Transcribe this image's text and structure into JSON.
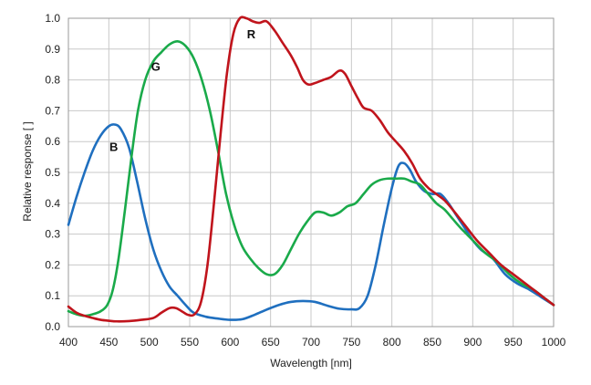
{
  "chart_data": {
    "type": "line",
    "xlabel": "Wavelength [nm]",
    "ylabel": "Relative response [ ]",
    "xlim": [
      400,
      1000
    ],
    "ylim": [
      0,
      1.0
    ],
    "xticks": [
      "400",
      "450",
      "500",
      "550",
      "600",
      "650",
      "700",
      "750",
      "800",
      "850",
      "900",
      "950",
      "1000"
    ],
    "yticks": [
      "0.0",
      "0.1",
      "0.2",
      "0.3",
      "0.4",
      "0.5",
      "0.6",
      "0.7",
      "0.8",
      "0.9",
      "1.0"
    ],
    "grid": true,
    "series": [
      {
        "name": "B",
        "color": "#1f6fbf",
        "label_at": [
          456,
          0.57
        ],
        "points": [
          [
            400,
            0.33
          ],
          [
            410,
            0.42
          ],
          [
            420,
            0.5
          ],
          [
            430,
            0.57
          ],
          [
            440,
            0.62
          ],
          [
            450,
            0.65
          ],
          [
            458,
            0.655
          ],
          [
            465,
            0.64
          ],
          [
            475,
            0.58
          ],
          [
            485,
            0.47
          ],
          [
            495,
            0.35
          ],
          [
            505,
            0.25
          ],
          [
            515,
            0.18
          ],
          [
            525,
            0.13
          ],
          [
            535,
            0.1
          ],
          [
            545,
            0.07
          ],
          [
            555,
            0.045
          ],
          [
            570,
            0.032
          ],
          [
            585,
            0.026
          ],
          [
            600,
            0.022
          ],
          [
            615,
            0.024
          ],
          [
            630,
            0.038
          ],
          [
            645,
            0.055
          ],
          [
            660,
            0.07
          ],
          [
            675,
            0.08
          ],
          [
            690,
            0.083
          ],
          [
            705,
            0.08
          ],
          [
            720,
            0.068
          ],
          [
            735,
            0.058
          ],
          [
            750,
            0.056
          ],
          [
            760,
            0.06
          ],
          [
            770,
            0.1
          ],
          [
            780,
            0.2
          ],
          [
            790,
            0.33
          ],
          [
            800,
            0.45
          ],
          [
            808,
            0.52
          ],
          [
            815,
            0.53
          ],
          [
            822,
            0.51
          ],
          [
            830,
            0.47
          ],
          [
            840,
            0.44
          ],
          [
            850,
            0.43
          ],
          [
            860,
            0.43
          ],
          [
            870,
            0.4
          ],
          [
            880,
            0.36
          ],
          [
            890,
            0.32
          ],
          [
            900,
            0.28
          ],
          [
            910,
            0.25
          ],
          [
            925,
            0.22
          ],
          [
            940,
            0.17
          ],
          [
            955,
            0.14
          ],
          [
            970,
            0.12
          ],
          [
            985,
            0.095
          ],
          [
            1000,
            0.07
          ]
        ]
      },
      {
        "name": "G",
        "color": "#1aaa4a",
        "label_at": [
          508,
          0.83
        ],
        "points": [
          [
            400,
            0.05
          ],
          [
            410,
            0.04
          ],
          [
            420,
            0.035
          ],
          [
            430,
            0.04
          ],
          [
            440,
            0.05
          ],
          [
            448,
            0.07
          ],
          [
            455,
            0.12
          ],
          [
            462,
            0.22
          ],
          [
            470,
            0.38
          ],
          [
            478,
            0.55
          ],
          [
            486,
            0.7
          ],
          [
            495,
            0.8
          ],
          [
            505,
            0.86
          ],
          [
            515,
            0.89
          ],
          [
            525,
            0.915
          ],
          [
            535,
            0.925
          ],
          [
            545,
            0.91
          ],
          [
            555,
            0.87
          ],
          [
            565,
            0.8
          ],
          [
            575,
            0.7
          ],
          [
            585,
            0.57
          ],
          [
            595,
            0.43
          ],
          [
            605,
            0.33
          ],
          [
            615,
            0.26
          ],
          [
            625,
            0.22
          ],
          [
            635,
            0.19
          ],
          [
            645,
            0.17
          ],
          [
            655,
            0.17
          ],
          [
            665,
            0.2
          ],
          [
            675,
            0.25
          ],
          [
            685,
            0.3
          ],
          [
            695,
            0.34
          ],
          [
            705,
            0.37
          ],
          [
            715,
            0.37
          ],
          [
            725,
            0.36
          ],
          [
            735,
            0.37
          ],
          [
            745,
            0.39
          ],
          [
            755,
            0.4
          ],
          [
            765,
            0.43
          ],
          [
            775,
            0.46
          ],
          [
            785,
            0.475
          ],
          [
            795,
            0.48
          ],
          [
            805,
            0.48
          ],
          [
            815,
            0.48
          ],
          [
            825,
            0.47
          ],
          [
            835,
            0.46
          ],
          [
            845,
            0.43
          ],
          [
            855,
            0.4
          ],
          [
            865,
            0.38
          ],
          [
            875,
            0.35
          ],
          [
            885,
            0.32
          ],
          [
            900,
            0.28
          ],
          [
            915,
            0.24
          ],
          [
            930,
            0.21
          ],
          [
            945,
            0.17
          ],
          [
            960,
            0.14
          ],
          [
            975,
            0.12
          ],
          [
            990,
            0.09
          ],
          [
            1000,
            0.07
          ]
        ]
      },
      {
        "name": "R",
        "color": "#c0141c",
        "label_at": [
          626,
          0.935
        ],
        "points": [
          [
            400,
            0.065
          ],
          [
            410,
            0.045
          ],
          [
            420,
            0.035
          ],
          [
            430,
            0.028
          ],
          [
            440,
            0.022
          ],
          [
            450,
            0.019
          ],
          [
            460,
            0.017
          ],
          [
            475,
            0.018
          ],
          [
            490,
            0.022
          ],
          [
            505,
            0.028
          ],
          [
            515,
            0.045
          ],
          [
            525,
            0.06
          ],
          [
            533,
            0.06
          ],
          [
            540,
            0.05
          ],
          [
            548,
            0.038
          ],
          [
            556,
            0.04
          ],
          [
            564,
            0.08
          ],
          [
            572,
            0.2
          ],
          [
            580,
            0.4
          ],
          [
            588,
            0.62
          ],
          [
            596,
            0.82
          ],
          [
            604,
            0.95
          ],
          [
            612,
            1.0
          ],
          [
            620,
            1.0
          ],
          [
            628,
            0.99
          ],
          [
            636,
            0.985
          ],
          [
            645,
            0.99
          ],
          [
            655,
            0.96
          ],
          [
            665,
            0.92
          ],
          [
            675,
            0.88
          ],
          [
            683,
            0.84
          ],
          [
            690,
            0.8
          ],
          [
            697,
            0.785
          ],
          [
            705,
            0.79
          ],
          [
            715,
            0.8
          ],
          [
            725,
            0.81
          ],
          [
            735,
            0.83
          ],
          [
            742,
            0.82
          ],
          [
            750,
            0.78
          ],
          [
            758,
            0.74
          ],
          [
            765,
            0.71
          ],
          [
            775,
            0.7
          ],
          [
            785,
            0.67
          ],
          [
            795,
            0.63
          ],
          [
            805,
            0.6
          ],
          [
            815,
            0.57
          ],
          [
            825,
            0.53
          ],
          [
            835,
            0.48
          ],
          [
            845,
            0.45
          ],
          [
            855,
            0.43
          ],
          [
            865,
            0.41
          ],
          [
            875,
            0.38
          ],
          [
            890,
            0.33
          ],
          [
            905,
            0.28
          ],
          [
            920,
            0.24
          ],
          [
            935,
            0.2
          ],
          [
            950,
            0.17
          ],
          [
            965,
            0.14
          ],
          [
            980,
            0.11
          ],
          [
            1000,
            0.07
          ]
        ]
      }
    ]
  }
}
